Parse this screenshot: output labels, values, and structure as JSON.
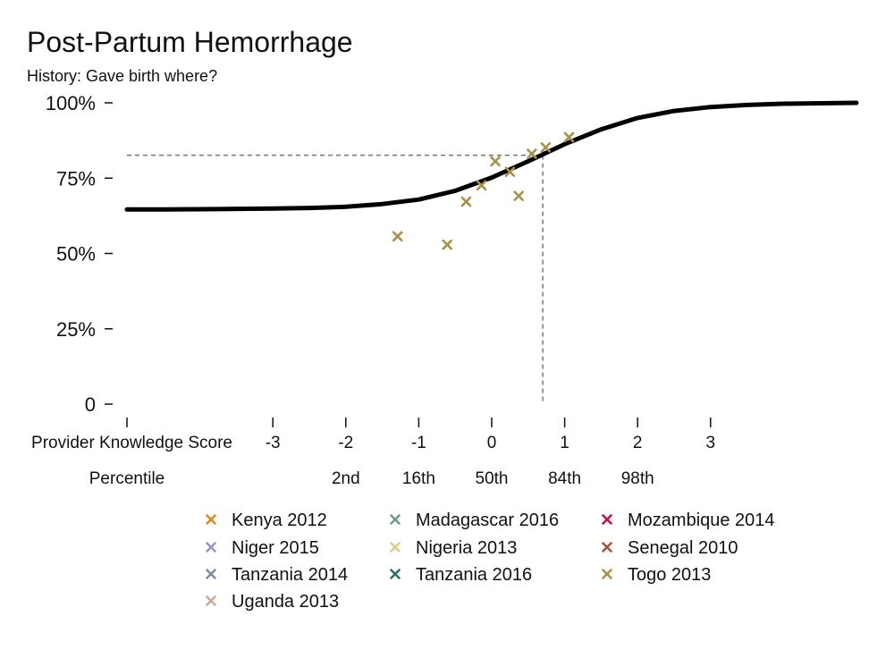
{
  "chart_data": {
    "type": "scatter",
    "title": "Post-Partum Hemorrhage",
    "subtitle": "History: Gave birth where?",
    "xlabel": "Provider Knowledge Score",
    "percentile_label": "Percentile",
    "x_ticks": [
      -3,
      -2,
      -1,
      0,
      1,
      2,
      3
    ],
    "x_tick_labels": [
      "-3",
      "-2",
      "-1",
      "0",
      "1",
      "2",
      "3"
    ],
    "percentile_ticks": [
      {
        "x": -2,
        "label": "2nd"
      },
      {
        "x": -1,
        "label": "16th"
      },
      {
        "x": 0,
        "label": "50th"
      },
      {
        "x": 1,
        "label": "84th"
      },
      {
        "x": 2,
        "label": "98th"
      }
    ],
    "xlim": [
      -5,
      5
    ],
    "ylim": [
      0,
      1
    ],
    "y_ticks": [
      0,
      0.25,
      0.5,
      0.75,
      1.0
    ],
    "y_tick_labels": [
      "0",
      "25%",
      "50%",
      "75%",
      "100%"
    ],
    "curve": {
      "color": "#000000",
      "points": [
        [
          -5.0,
          0.646
        ],
        [
          -4.5,
          0.646
        ],
        [
          -4.0,
          0.647
        ],
        [
          -3.5,
          0.648
        ],
        [
          -3.0,
          0.649
        ],
        [
          -2.5,
          0.651
        ],
        [
          -2.0,
          0.655
        ],
        [
          -1.5,
          0.664
        ],
        [
          -1.0,
          0.679
        ],
        [
          -0.5,
          0.708
        ],
        [
          0.0,
          0.752
        ],
        [
          0.5,
          0.806
        ],
        [
          1.0,
          0.863
        ],
        [
          1.5,
          0.912
        ],
        [
          2.0,
          0.95
        ],
        [
          2.5,
          0.973
        ],
        [
          3.0,
          0.986
        ],
        [
          3.5,
          0.993
        ],
        [
          4.0,
          0.997
        ],
        [
          5.0,
          1.0
        ]
      ]
    },
    "reference": {
      "x": 0.7,
      "y": 0.826
    },
    "series": [
      {
        "name": "Kenya 2012",
        "color": "#e08a1e",
        "points": []
      },
      {
        "name": "Madagascar 2016",
        "color": "#6b9a8a",
        "points": []
      },
      {
        "name": "Mozambique 2014",
        "color": "#c4143c",
        "points": []
      },
      {
        "name": "Niger 2015",
        "color": "#9b93cc",
        "points": []
      },
      {
        "name": "Nigeria 2013",
        "color": "#d8cf8a",
        "points": []
      },
      {
        "name": "Senegal 2010",
        "color": "#a8553a",
        "points": []
      },
      {
        "name": "Tanzania 2014",
        "color": "#7d8ba3",
        "points": []
      },
      {
        "name": "Tanzania 2016",
        "color": "#2f6e66",
        "points": []
      },
      {
        "name": "Togo 2013",
        "color": "#a8914a",
        "points": [
          [
            -1.29,
            0.557
          ],
          [
            -0.61,
            0.529
          ],
          [
            -0.35,
            0.672
          ],
          [
            -0.14,
            0.726
          ],
          [
            0.05,
            0.806
          ],
          [
            0.25,
            0.771
          ],
          [
            0.37,
            0.691
          ],
          [
            0.55,
            0.831
          ],
          [
            0.74,
            0.852
          ],
          [
            1.06,
            0.886
          ]
        ]
      },
      {
        "name": "Uganda 2013",
        "color": "#c9a89e",
        "points": []
      }
    ]
  }
}
